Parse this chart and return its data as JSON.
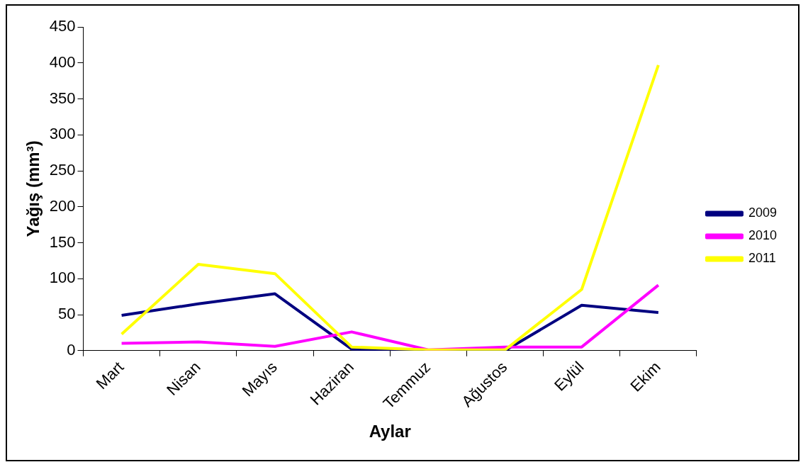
{
  "chart_data": {
    "type": "line",
    "xlabel": "Aylar",
    "ylabel": "Yağış (mm³)",
    "categories": [
      "Mart",
      "Nisan",
      "Mayıs",
      "Haziran",
      "Temmuz",
      "Ağustos",
      "Eylül",
      "Ekim"
    ],
    "series": [
      {
        "name": "2009",
        "color": "#000080",
        "values": [
          49,
          65,
          79,
          2,
          0,
          0,
          63,
          53
        ]
      },
      {
        "name": "2010",
        "color": "#ff00ff",
        "values": [
          10,
          12,
          6,
          26,
          1,
          5,
          5,
          91
        ]
      },
      {
        "name": "2011",
        "color": "#ffff00",
        "values": [
          23,
          120,
          107,
          5,
          1,
          1,
          85,
          397
        ]
      }
    ],
    "ylim": [
      0,
      450
    ],
    "yticks": [
      0,
      50,
      100,
      150,
      200,
      250,
      300,
      350,
      400,
      450
    ],
    "grid": false,
    "legend": "right",
    "marker": "none",
    "line_style": "solid"
  }
}
